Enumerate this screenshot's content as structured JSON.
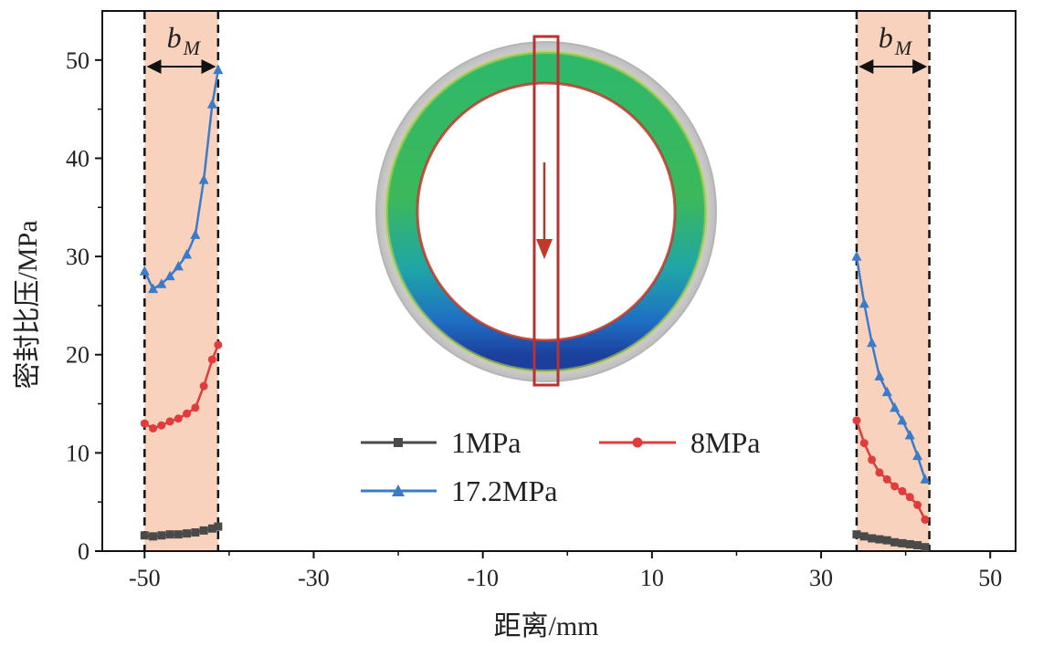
{
  "chart_data": {
    "type": "line",
    "xlabel": "距离/mm",
    "ylabel": "密封比压/MPa",
    "xlim": [
      -55,
      53
    ],
    "ylim": [
      0,
      55
    ],
    "xticks": [
      -50,
      -30,
      -10,
      10,
      30,
      50
    ],
    "yticks": [
      0,
      10,
      20,
      30,
      40,
      50
    ],
    "grid": false,
    "legend_position": "lower-center",
    "width_marker_label": "b",
    "width_marker_subscript": "M",
    "shaded_regions": [
      {
        "x": [
          -50,
          -41.3
        ],
        "color": "#f9d2bd",
        "label_base": "b",
        "label_sub": "M"
      },
      {
        "x": [
          34.2,
          42.8
        ],
        "color": "#f9d2bd",
        "label_base": "b",
        "label_sub": "M"
      }
    ],
    "series": [
      {
        "name": "1MPa",
        "color": "#4a4a4a",
        "marker": "square",
        "segments": [
          {
            "x": [
              -50,
              -49,
              -48,
              -47,
              -46,
              -45,
              -44,
              -43,
              -42,
              -41.3
            ],
            "y": [
              1.6,
              1.5,
              1.6,
              1.7,
              1.7,
              1.8,
              1.9,
              2.1,
              2.3,
              2.5
            ]
          },
          {
            "x": [
              34.2,
              35.1,
              36,
              36.9,
              37.8,
              38.7,
              39.6,
              40.5,
              41.4,
              42.3
            ],
            "y": [
              1.7,
              1.5,
              1.3,
              1.2,
              1.1,
              0.9,
              0.8,
              0.7,
              0.6,
              0.4
            ]
          }
        ]
      },
      {
        "name": "8MPa",
        "color": "#e03c3c",
        "marker": "circle",
        "segments": [
          {
            "x": [
              -50,
              -49,
              -48,
              -47,
              -46,
              -45,
              -44,
              -43,
              -42,
              -41.3
            ],
            "y": [
              13,
              12.5,
              12.8,
              13.2,
              13.5,
              14,
              14.6,
              16.8,
              19.5,
              21
            ]
          },
          {
            "x": [
              34.2,
              35.1,
              36,
              36.9,
              37.8,
              38.7,
              39.6,
              40.5,
              41.4,
              42.3
            ],
            "y": [
              13.3,
              11,
              9.3,
              8,
              7.3,
              6.6,
              6.1,
              5.5,
              4.7,
              3.2
            ]
          }
        ]
      },
      {
        "name": "17.2MPa",
        "color": "#3a7cc9",
        "marker": "triangle",
        "segments": [
          {
            "x": [
              -50,
              -49,
              -48,
              -47,
              -46,
              -45,
              -44,
              -43,
              -42,
              -41.3
            ],
            "y": [
              28.5,
              26.7,
              27.2,
              28,
              29,
              30.2,
              32.2,
              37.8,
              45.5,
              49
            ]
          },
          {
            "x": [
              34.2,
              35.1,
              36,
              36.9,
              37.8,
              38.7,
              39.6,
              40.5,
              41.4,
              42.3
            ],
            "y": [
              30,
              25.2,
              21.2,
              17.8,
              16.2,
              14.6,
              13.3,
              11.8,
              9.7,
              7.3
            ]
          }
        ]
      }
    ],
    "inset": {
      "description_icon": "gasket-ring-contour-icon",
      "highlight_color": "#c0392b"
    }
  }
}
